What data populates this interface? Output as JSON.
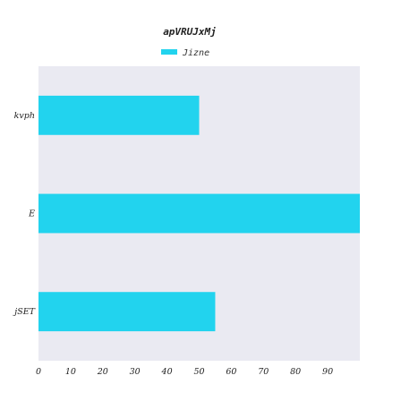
{
  "chart_data": {
    "type": "bar",
    "orientation": "horizontal",
    "title": "apVRUJxMj",
    "categories": [
      "kvph",
      "E",
      "jSET"
    ],
    "series": [
      {
        "name": "Jizne",
        "values": [
          50,
          100,
          55
        ]
      }
    ],
    "x_ticks": [
      0,
      10,
      20,
      30,
      40,
      50,
      60,
      70,
      80,
      90
    ],
    "xlim": [
      0,
      100
    ],
    "xlabel": "",
    "ylabel": "",
    "grid": false,
    "legend_position": "top-center",
    "colors": {
      "bar": "#22d3ee",
      "plot_background": "#eaeaf2",
      "legend_swatch": "#22d3ee"
    }
  }
}
